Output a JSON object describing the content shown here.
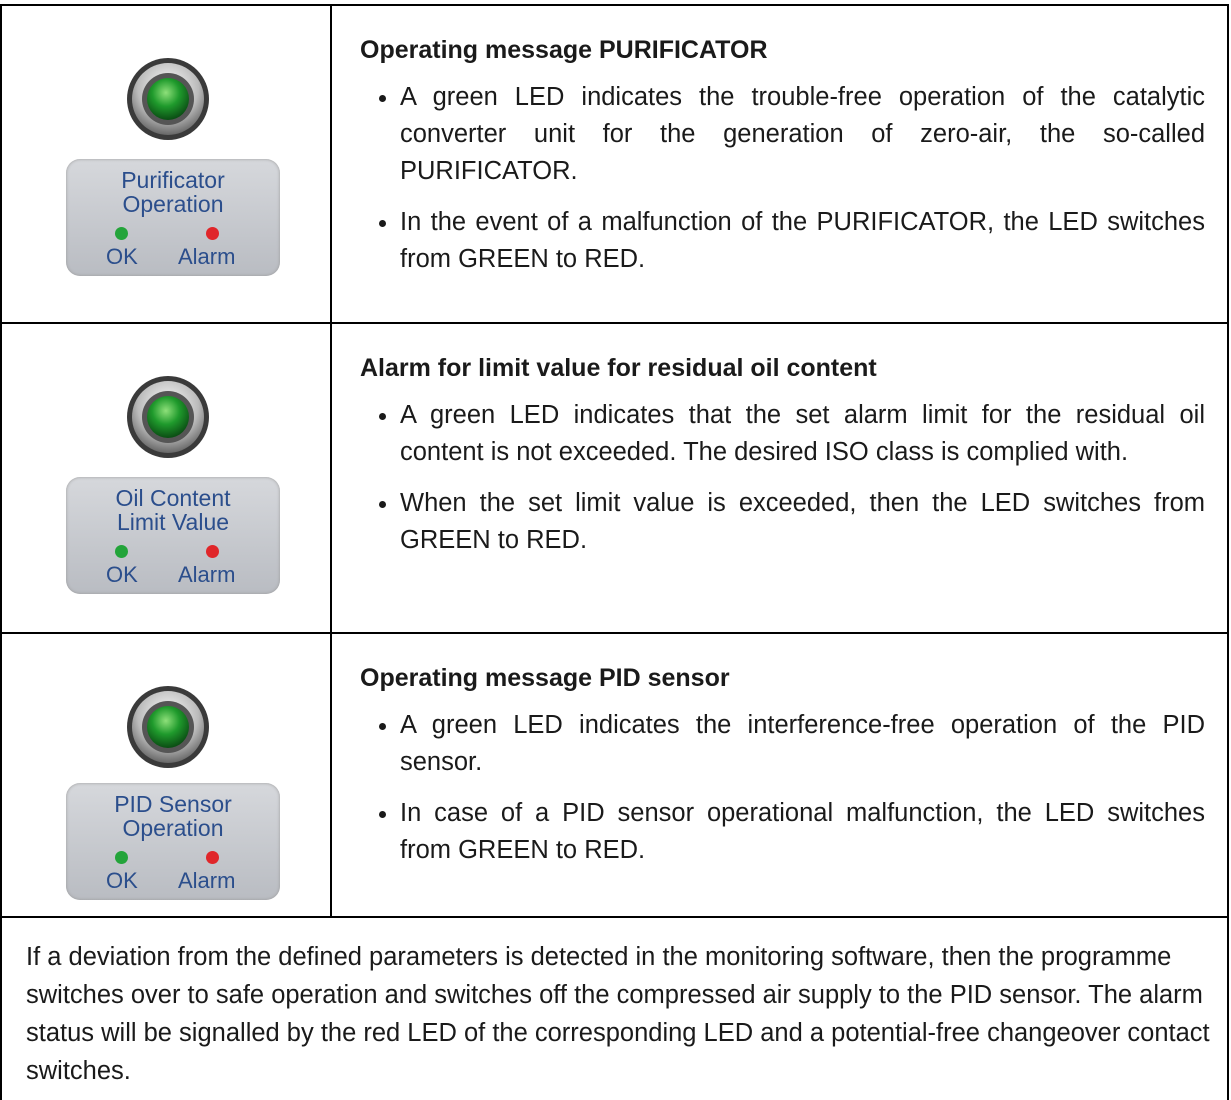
{
  "rows": [
    {
      "label": [
        "Purificator",
        "Operation"
      ],
      "ok": "OK",
      "alarm": "Alarm",
      "heading": "Operating message PURIFICATOR",
      "bullets": [
        "A green LED indicates the trouble-free operation of the catalytic converter unit for the generation of zero-air, the so-called PURIFICATOR.",
        "In the event of a malfunction of the PURIFICATOR, the LED switches from GREEN to RED."
      ]
    },
    {
      "label": [
        "Oil Content",
        "Limit Value"
      ],
      "ok": "OK",
      "alarm": "Alarm",
      "heading": "Alarm for limit value for residual oil content",
      "bullets": [
        "A green LED indicates that the set alarm limit for the residual oil content is not exceeded. The desired ISO class is complied with.",
        "When the set limit value is exceeded, then the LED switches from GREEN to RED."
      ]
    },
    {
      "label": [
        "PID Sensor",
        "Operation"
      ],
      "ok": "OK",
      "alarm": "Alarm",
      "heading": "Operating message PID sensor",
      "bullets": [
        "A green LED indicates the interference-free operation of the PID sensor.",
        "In case of a PID sensor operational malfunction, the LED switches from GREEN to RED."
      ]
    }
  ],
  "footer": "If a deviation from the defined parameters is detected in the monitoring software, then the programme switches over to safe operation and switches off the compressed air supply to the PID sensor. The alarm status will be signalled by the red LED of the corresponding LED and a potential-free changeover contact switches."
}
